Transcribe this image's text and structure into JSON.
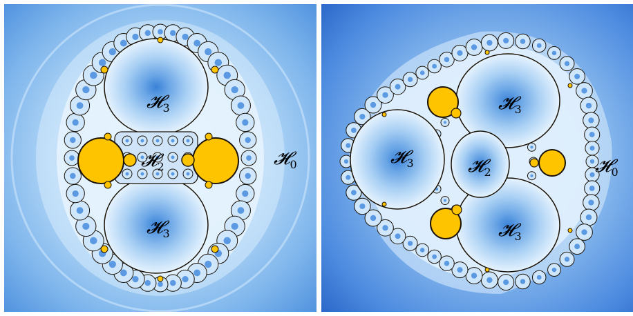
{
  "panels": [
    {
      "labels": [
        {
          "id": "left-h3-top",
          "base": "𝓗",
          "sub": "3"
        },
        {
          "id": "left-h2-center",
          "base": "𝓗",
          "sub": "2"
        },
        {
          "id": "left-h3-bottom",
          "base": "𝓗",
          "sub": "3"
        },
        {
          "id": "left-h0-outside",
          "base": "𝓗",
          "sub": "0"
        }
      ]
    },
    {
      "labels": [
        {
          "id": "right-h3-top",
          "base": "𝓗",
          "sub": "3"
        },
        {
          "id": "right-h3-left",
          "base": "𝓗",
          "sub": "3"
        },
        {
          "id": "right-h2-center",
          "base": "𝓗",
          "sub": "2"
        },
        {
          "id": "right-h3-bottom",
          "base": "𝓗",
          "sub": "3"
        },
        {
          "id": "right-h0-outside",
          "base": "𝓗",
          "sub": "0"
        }
      ]
    }
  ],
  "colors": {
    "outer_dark": "#2f6fd0",
    "outer_mid": "#66a4e6",
    "outer_light": "#cfe6fb",
    "basin_center": "#3a82d8",
    "basin_edge": "#e3f1fd",
    "julia_line": "#1a1206",
    "mandelbrot_gold": "#ffc400"
  }
}
